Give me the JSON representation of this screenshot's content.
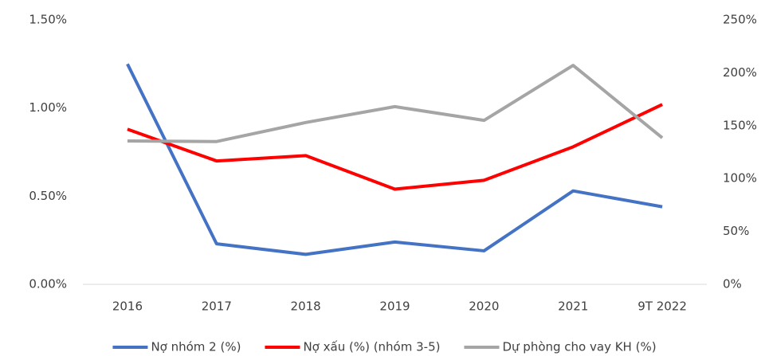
{
  "chart_data": {
    "type": "line",
    "categories": [
      "2016",
      "2017",
      "2018",
      "2019",
      "2020",
      "2021",
      "9T 2022"
    ],
    "series": [
      {
        "name": "Nợ nhóm 2 (%)",
        "color": "#4472c4",
        "values": [
          1.25,
          0.23,
          0.17,
          0.24,
          0.19,
          0.53,
          0.44
        ]
      },
      {
        "name": "Nợ xấu (%) (nhóm 3-5)",
        "color": "#ff0000",
        "values": [
          0.88,
          0.7,
          0.73,
          0.54,
          0.59,
          0.78,
          1.02
        ]
      },
      {
        "name": "Dự phòng cho vay KH (%)",
        "color": "#a5a5a5",
        "axis": "y2",
        "values": [
          135.5,
          135,
          153,
          168,
          155,
          207,
          138.5
        ]
      }
    ],
    "ylim": [
      0,
      1.5
    ],
    "yticks": [
      {
        "value": 0,
        "label": "0.00%"
      },
      {
        "value": 0.5,
        "label": "0.50%"
      },
      {
        "value": 1,
        "label": "1.00%"
      },
      {
        "value": 1.5,
        "label": "1.50%"
      }
    ],
    "y2lim": [
      0,
      250
    ],
    "y2ticks": [
      {
        "value": 0,
        "label": "0%"
      },
      {
        "value": 50,
        "label": "50%"
      },
      {
        "value": 100,
        "label": "100%"
      },
      {
        "value": 150,
        "label": "150%"
      },
      {
        "value": 200,
        "label": "200%"
      },
      {
        "value": 250,
        "label": "250%"
      }
    ],
    "grid": false,
    "legend": "bottom"
  }
}
